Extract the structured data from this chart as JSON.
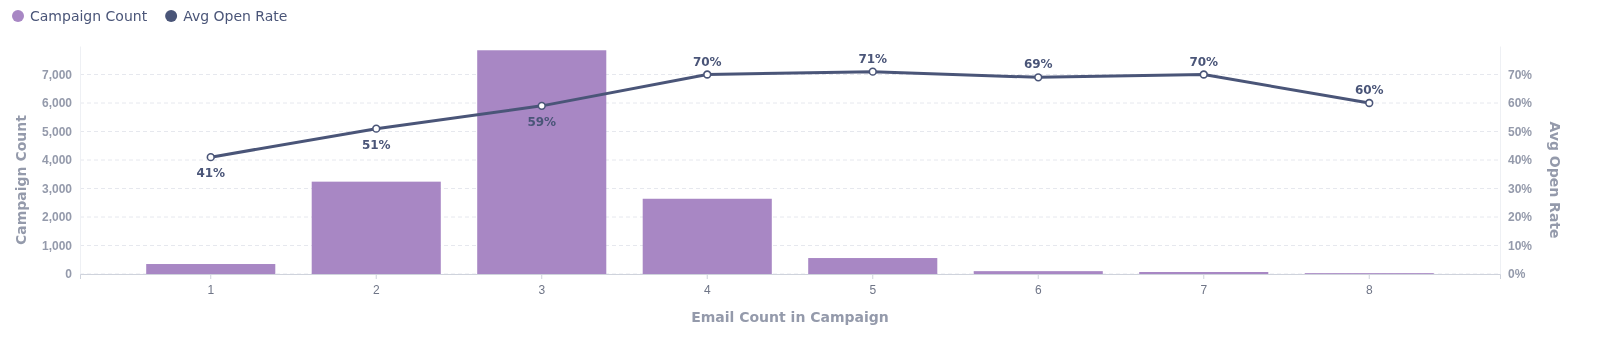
{
  "chart_data": {
    "type": "bar",
    "xlabel": "Email Count in Campaign",
    "ylabel": "Campaign Count",
    "y2label": "Avg Open Rate",
    "categories": [
      "1",
      "2",
      "3",
      "4",
      "5",
      "6",
      "7",
      "8"
    ],
    "series": [
      {
        "name": "Campaign Count",
        "color": "#a887c4",
        "values": [
          350,
          3240,
          7850,
          2640,
          560,
          100,
          70,
          30
        ]
      },
      {
        "name": "Avg Open Rate",
        "type": "line",
        "axis": "y2",
        "color": "#4a5578",
        "marker": "circle",
        "values": [
          41,
          51,
          59,
          70,
          71,
          69,
          70,
          60
        ],
        "value_labels": [
          "41%",
          "51%",
          "59%",
          "70%",
          "71%",
          "69%",
          "70%",
          "60%"
        ]
      }
    ],
    "ylim": [
      0,
      8000
    ],
    "yticks": [
      0,
      {
        "value": 1000,
        "label": "1,000"
      },
      {
        "value": 2000,
        "label": "2,000"
      },
      {
        "value": 3000,
        "label": "3,000"
      },
      {
        "value": 4000,
        "label": "4,000"
      },
      {
        "value": 5000,
        "label": "5,000"
      },
      {
        "value": 6000,
        "label": "6,000"
      },
      {
        "value": 7000,
        "label": "7,000"
      }
    ],
    "y2lim": [
      0,
      80
    ],
    "y2ticks": [
      {
        "value": 0,
        "label": "0%"
      },
      {
        "value": 10,
        "label": "10%"
      },
      {
        "value": 20,
        "label": "20%"
      },
      {
        "value": 30,
        "label": "30%"
      },
      {
        "value": 40,
        "label": "40%"
      },
      {
        "value": 50,
        "label": "50%"
      },
      {
        "value": 60,
        "label": "60%"
      },
      {
        "value": 70,
        "label": "70%"
      }
    ],
    "grid": "y",
    "legend": "top left"
  }
}
